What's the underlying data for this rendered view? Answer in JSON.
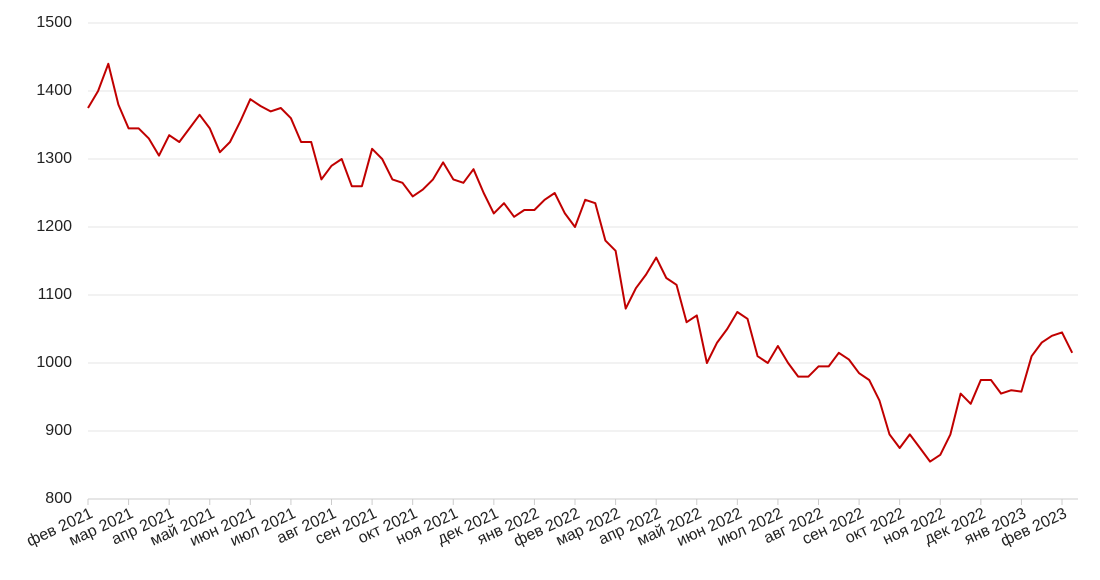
{
  "chart_data": {
    "type": "line",
    "categories": [
      "фев 2021",
      null,
      null,
      null,
      "мар 2021",
      null,
      null,
      null,
      "апр 2021",
      null,
      null,
      null,
      "май 2021",
      null,
      null,
      null,
      "июн 2021",
      null,
      null,
      null,
      "июл 2021",
      null,
      null,
      null,
      "авг 2021",
      null,
      null,
      null,
      "сен 2021",
      null,
      null,
      null,
      "окт 2021",
      null,
      null,
      null,
      "ноя 2021",
      null,
      null,
      null,
      "дек 2021",
      null,
      null,
      null,
      "янв 2022",
      null,
      null,
      null,
      "фев 2022",
      null,
      null,
      null,
      "мар 2022",
      null,
      null,
      null,
      "апр 2022",
      null,
      null,
      null,
      "май 2022",
      null,
      null,
      null,
      "июн 2022",
      null,
      null,
      null,
      "июл 2022",
      null,
      null,
      null,
      "авг 2022",
      null,
      null,
      null,
      "сен 2022",
      null,
      null,
      null,
      "окт 2022",
      null,
      null,
      null,
      "ноя 2022",
      null,
      null,
      null,
      "дек 2022",
      null,
      null,
      null,
      "янв 2023",
      null,
      null,
      null,
      "фев 2023",
      null
    ],
    "values": [
      1375,
      1400,
      1440,
      1380,
      1345,
      1345,
      1330,
      1305,
      1335,
      1325,
      1345,
      1365,
      1345,
      1310,
      1325,
      1355,
      1388,
      1378,
      1370,
      1375,
      1360,
      1325,
      1325,
      1270,
      1290,
      1300,
      1260,
      1260,
      1315,
      1300,
      1270,
      1265,
      1245,
      1255,
      1270,
      1295,
      1270,
      1265,
      1285,
      1250,
      1220,
      1235,
      1215,
      1225,
      1225,
      1240,
      1250,
      1220,
      1200,
      1240,
      1235,
      1180,
      1165,
      1080,
      1110,
      1130,
      1155,
      1125,
      1115,
      1060,
      1070,
      1000,
      1030,
      1050,
      1075,
      1065,
      1010,
      1000,
      1025,
      1000,
      980,
      980,
      995,
      995,
      1015,
      1005,
      985,
      975,
      945,
      895,
      875,
      895,
      875,
      855,
      865,
      895,
      955,
      940,
      975,
      975,
      955,
      960,
      958,
      1010,
      1030,
      1040,
      1045,
      1015
    ],
    "color": "#c00000",
    "ylim": [
      800,
      1500
    ],
    "yticks": [
      800,
      900,
      1000,
      1100,
      1200,
      1300,
      1400,
      1500
    ],
    "grid": true
  }
}
